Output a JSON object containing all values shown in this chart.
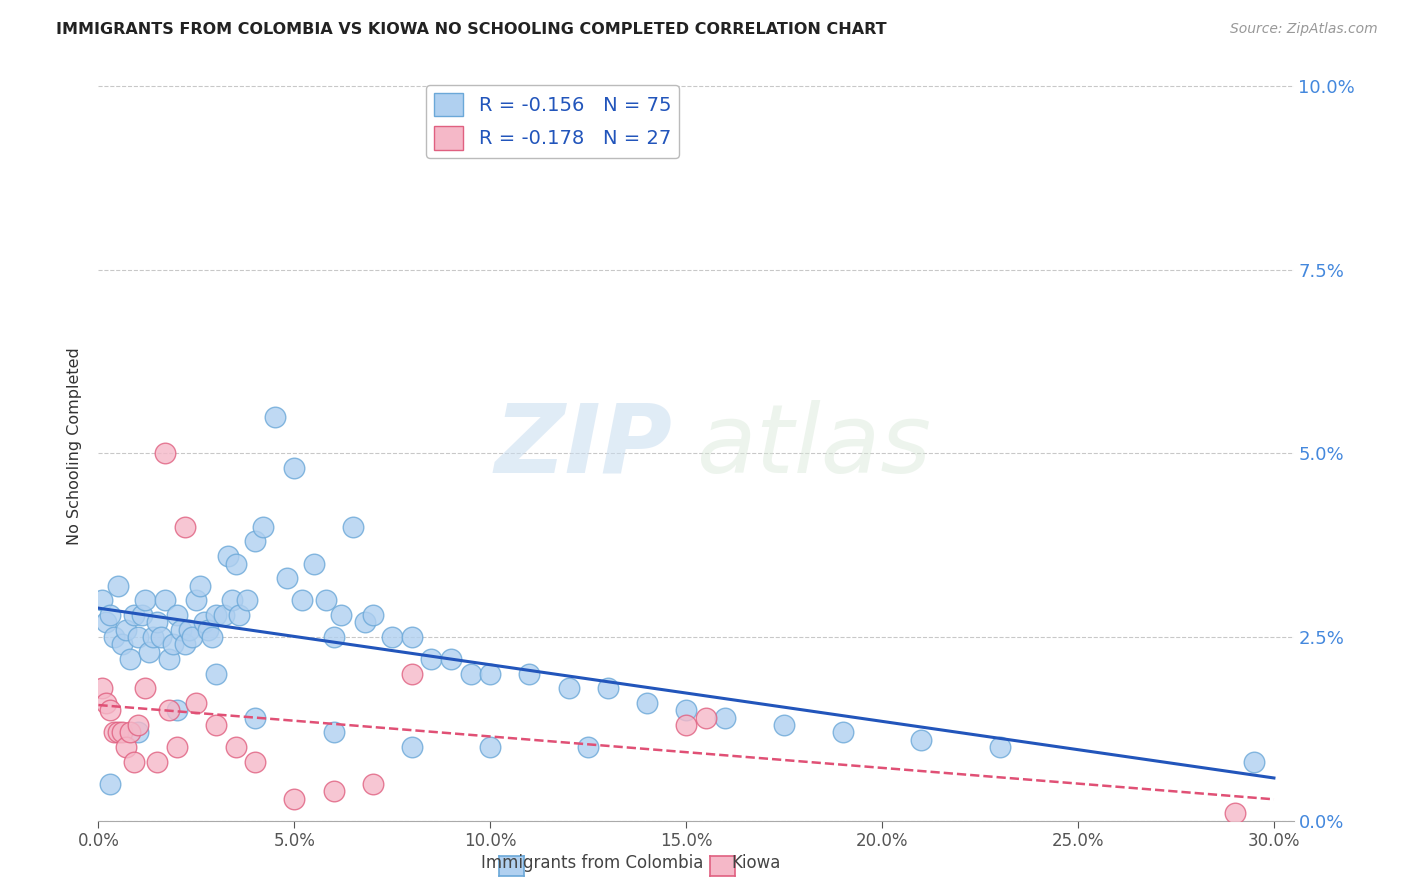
{
  "title": "IMMIGRANTS FROM COLOMBIA VS KIOWA NO SCHOOLING COMPLETED CORRELATION CHART",
  "source": "Source: ZipAtlas.com",
  "ylabel": "No Schooling Completed",
  "xlim": [
    0.0,
    0.305
  ],
  "ylim": [
    0.0,
    0.102
  ],
  "colombia_scatter_x": [
    0.001,
    0.002,
    0.003,
    0.004,
    0.005,
    0.006,
    0.007,
    0.008,
    0.009,
    0.01,
    0.011,
    0.012,
    0.013,
    0.014,
    0.015,
    0.016,
    0.017,
    0.018,
    0.019,
    0.02,
    0.021,
    0.022,
    0.023,
    0.024,
    0.025,
    0.026,
    0.027,
    0.028,
    0.029,
    0.03,
    0.032,
    0.033,
    0.034,
    0.035,
    0.036,
    0.038,
    0.04,
    0.042,
    0.045,
    0.048,
    0.05,
    0.052,
    0.055,
    0.058,
    0.06,
    0.062,
    0.065,
    0.068,
    0.07,
    0.075,
    0.08,
    0.085,
    0.09,
    0.095,
    0.1,
    0.11,
    0.12,
    0.13,
    0.14,
    0.15,
    0.16,
    0.175,
    0.19,
    0.21,
    0.23,
    0.01,
    0.02,
    0.03,
    0.04,
    0.06,
    0.08,
    0.1,
    0.125,
    0.295,
    0.003
  ],
  "colombia_scatter_y": [
    0.03,
    0.027,
    0.028,
    0.025,
    0.032,
    0.024,
    0.026,
    0.022,
    0.028,
    0.025,
    0.028,
    0.03,
    0.023,
    0.025,
    0.027,
    0.025,
    0.03,
    0.022,
    0.024,
    0.028,
    0.026,
    0.024,
    0.026,
    0.025,
    0.03,
    0.032,
    0.027,
    0.026,
    0.025,
    0.028,
    0.028,
    0.036,
    0.03,
    0.035,
    0.028,
    0.03,
    0.038,
    0.04,
    0.055,
    0.033,
    0.048,
    0.03,
    0.035,
    0.03,
    0.025,
    0.028,
    0.04,
    0.027,
    0.028,
    0.025,
    0.025,
    0.022,
    0.022,
    0.02,
    0.02,
    0.02,
    0.018,
    0.018,
    0.016,
    0.015,
    0.014,
    0.013,
    0.012,
    0.011,
    0.01,
    0.012,
    0.015,
    0.02,
    0.014,
    0.012,
    0.01,
    0.01,
    0.01,
    0.008,
    0.005
  ],
  "kiowa_scatter_x": [
    0.001,
    0.002,
    0.003,
    0.004,
    0.005,
    0.006,
    0.007,
    0.008,
    0.009,
    0.01,
    0.012,
    0.015,
    0.017,
    0.018,
    0.02,
    0.022,
    0.025,
    0.03,
    0.035,
    0.04,
    0.05,
    0.06,
    0.07,
    0.08,
    0.15,
    0.155,
    0.29
  ],
  "kiowa_scatter_y": [
    0.018,
    0.016,
    0.015,
    0.012,
    0.012,
    0.012,
    0.01,
    0.012,
    0.008,
    0.013,
    0.018,
    0.008,
    0.05,
    0.015,
    0.01,
    0.04,
    0.016,
    0.013,
    0.01,
    0.008,
    0.003,
    0.004,
    0.005,
    0.02,
    0.013,
    0.014,
    0.001
  ],
  "colombia_color": "#6ba8d8",
  "colombia_color_fill": "#b0d0f0",
  "kiowa_color": "#e06080",
  "kiowa_color_fill": "#f5b8c8",
  "trendline_colombia_color": "#2255bb",
  "trendline_kiowa_color": "#e05075",
  "watermark_zip": "ZIP",
  "watermark_atlas": "atlas",
  "colombia_R": -0.156,
  "colombia_N": 75,
  "kiowa_R": -0.178,
  "kiowa_N": 27
}
